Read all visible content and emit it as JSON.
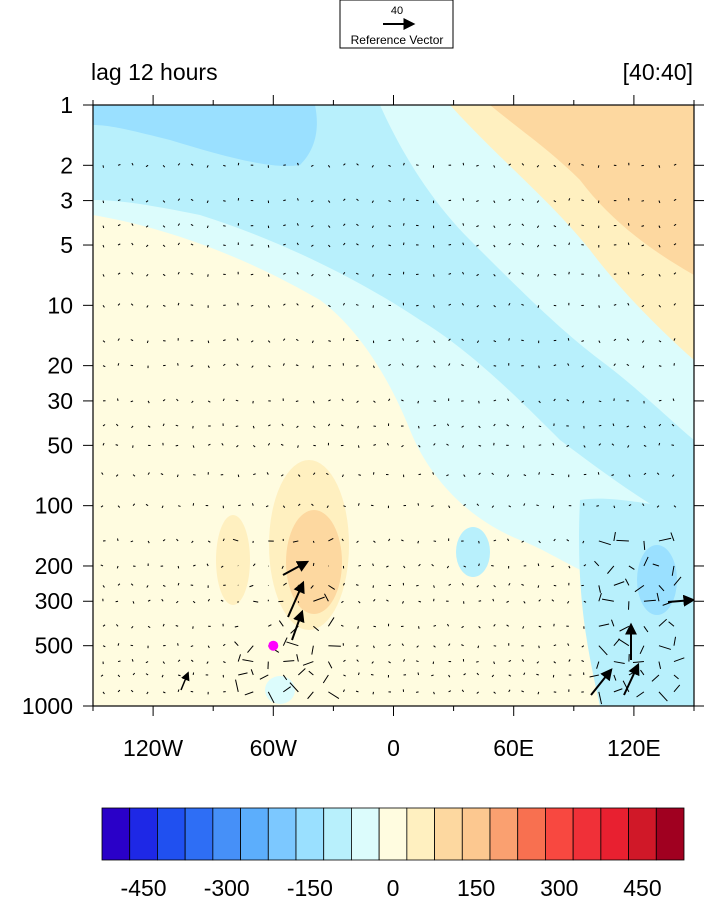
{
  "chart_data": {
    "type": "heatmap",
    "title_left": "lag 12 hours",
    "title_right": "[40:40]",
    "reference_vector": {
      "magnitude": "40",
      "label": "Reference Vector"
    },
    "x_axis": {
      "range": [
        -150,
        150
      ],
      "ticks": [
        {
          "value": -120,
          "label": "120W"
        },
        {
          "value": -60,
          "label": "60W"
        },
        {
          "value": 0,
          "label": "0"
        },
        {
          "value": 60,
          "label": "60E"
        },
        {
          "value": 120,
          "label": "120E"
        }
      ]
    },
    "y_axis": {
      "scale": "log",
      "reversed": true,
      "range": [
        1,
        1000
      ],
      "ticks": [
        {
          "value": 1,
          "label": "1"
        },
        {
          "value": 2,
          "label": "2"
        },
        {
          "value": 3,
          "label": "3"
        },
        {
          "value": 5,
          "label": "5"
        },
        {
          "value": 10,
          "label": "10"
        },
        {
          "value": 20,
          "label": "20"
        },
        {
          "value": 30,
          "label": "30"
        },
        {
          "value": 50,
          "label": "50"
        },
        {
          "value": 100,
          "label": "100"
        },
        {
          "value": 200,
          "label": "200"
        },
        {
          "value": 300,
          "label": "300"
        },
        {
          "value": 500,
          "label": "500"
        },
        {
          "value": 1000,
          "label": "1000"
        }
      ]
    },
    "colorbar": {
      "levels": [
        -525,
        -475,
        -425,
        -375,
        -325,
        -275,
        -225,
        -175,
        -125,
        -75,
        -25,
        25,
        75,
        125,
        175,
        225,
        275,
        325,
        375,
        425,
        475,
        525
      ],
      "colors": [
        "#2a00c8",
        "#1e28e6",
        "#2050f0",
        "#2e6ef5",
        "#4690f8",
        "#5caefc",
        "#7cc8ff",
        "#9ae0ff",
        "#b8f0fc",
        "#dcfcfc",
        "#fffce0",
        "#fff0c0",
        "#fdd8a0",
        "#fcc890",
        "#faa070",
        "#f87050",
        "#f84840",
        "#f03038",
        "#e82030",
        "#d01828",
        "#a00020"
      ],
      "tick_labels": [
        {
          "value": -450,
          "label": "-450"
        },
        {
          "value": -300,
          "label": "-300"
        },
        {
          "value": -150,
          "label": "-150"
        },
        {
          "value": 0,
          "label": "0"
        },
        {
          "value": 150,
          "label": "150"
        },
        {
          "value": 300,
          "label": "300"
        },
        {
          "value": 450,
          "label": "450"
        }
      ]
    },
    "marker": {
      "lon": -60,
      "pressure": 500,
      "color": "#ff00ff"
    }
  }
}
